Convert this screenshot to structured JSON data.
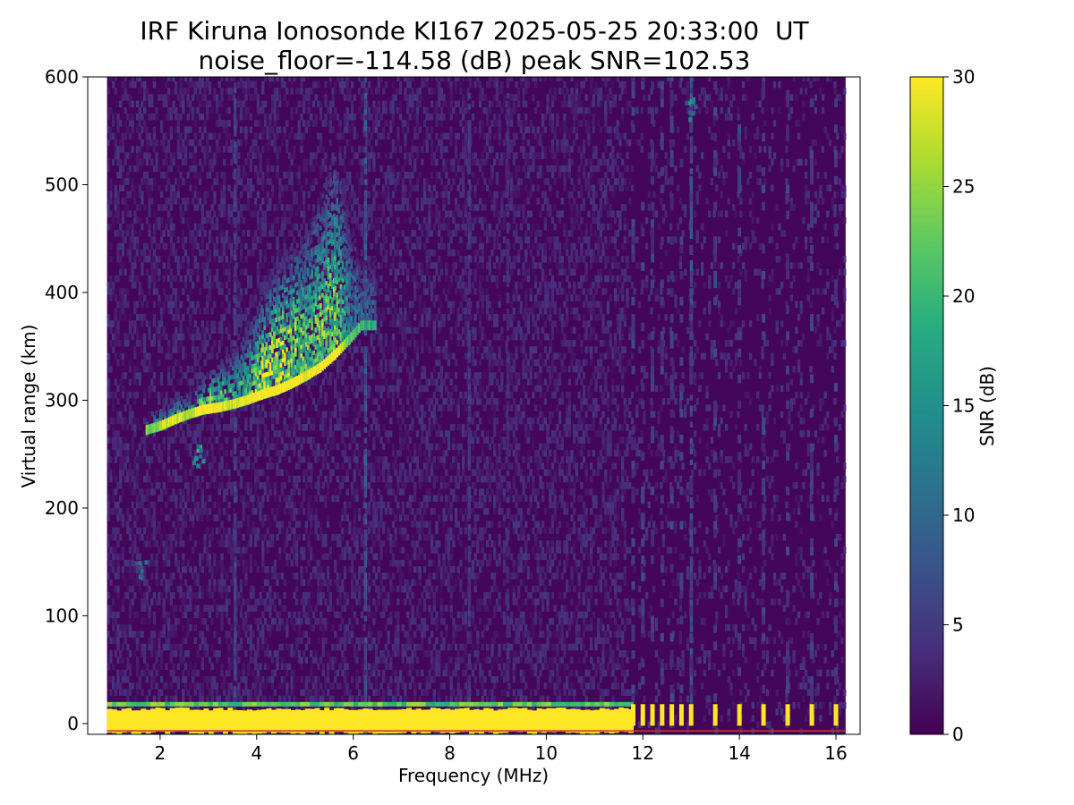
{
  "chart_data": {
    "type": "heatmap",
    "title_line1": "IRF Kiruna Ionosonde KI167 2025-05-25 20:33:00  UT",
    "title_line2": "noise_floor=-114.58 (dB) peak SNR=102.53",
    "xlabel": "Frequency (MHz)",
    "ylabel": "Virtual range (km)",
    "colorbar_label": "SNR (dB)",
    "colormap": "viridis",
    "xlim": [
      0.5,
      16.5
    ],
    "ylim": [
      -10,
      600
    ],
    "data_x_range": [
      0.9,
      16.2
    ],
    "x_ticks": [
      2,
      4,
      6,
      8,
      10,
      12,
      14,
      16
    ],
    "y_ticks": [
      0,
      100,
      200,
      300,
      400,
      500,
      600
    ],
    "colorbar_range": [
      0,
      30
    ],
    "colorbar_ticks": [
      0,
      5,
      10,
      15,
      20,
      25,
      30
    ],
    "noise_floor_db": -114.58,
    "peak_snr": 102.53,
    "sweep_change_mhz": 11.7,
    "ground_clutter": {
      "range_km": [
        -8,
        14
      ],
      "snr": 30
    },
    "f_trace": [
      {
        "f": 1.7,
        "range_bottom": 268,
        "range_top": 285,
        "snr": 14
      },
      {
        "f": 2.0,
        "range_bottom": 272,
        "range_top": 292,
        "snr": 18
      },
      {
        "f": 2.3,
        "range_bottom": 278,
        "range_top": 300,
        "snr": 20
      },
      {
        "f": 2.6,
        "range_bottom": 283,
        "range_top": 305,
        "snr": 17
      },
      {
        "f": 2.9,
        "range_bottom": 287,
        "range_top": 320,
        "snr": 26
      },
      {
        "f": 3.2,
        "range_bottom": 289,
        "range_top": 332,
        "snr": 22
      },
      {
        "f": 3.5,
        "range_bottom": 292,
        "range_top": 345,
        "snr": 18
      },
      {
        "f": 3.8,
        "range_bottom": 296,
        "range_top": 365,
        "snr": 20
      },
      {
        "f": 4.1,
        "range_bottom": 301,
        "range_top": 395,
        "snr": 27
      },
      {
        "f": 4.4,
        "range_bottom": 305,
        "range_top": 420,
        "snr": 28
      },
      {
        "f": 4.7,
        "range_bottom": 311,
        "range_top": 440,
        "snr": 26
      },
      {
        "f": 5.0,
        "range_bottom": 318,
        "range_top": 455,
        "snr": 22
      },
      {
        "f": 5.3,
        "range_bottom": 326,
        "range_top": 490,
        "snr": 23
      },
      {
        "f": 5.6,
        "range_bottom": 338,
        "range_top": 530,
        "snr": 24
      },
      {
        "f": 5.9,
        "range_bottom": 352,
        "range_top": 470,
        "snr": 14
      },
      {
        "f": 6.15,
        "range_bottom": 365,
        "range_top": 430,
        "snr": 10
      }
    ],
    "secondary_echoes": [
      {
        "f": 1.6,
        "range": 145,
        "snr": 10
      },
      {
        "f": 2.8,
        "range": 250,
        "snr": 18
      },
      {
        "f": 13.0,
        "range": 570,
        "snr": 14
      }
    ],
    "vertical_streaks": [
      {
        "f": 3.55,
        "snr": 6
      },
      {
        "f": 6.25,
        "snr": 8
      },
      {
        "f": 8.4,
        "snr": 5
      },
      {
        "f": 9.2,
        "snr": 4
      },
      {
        "f": 13.0,
        "snr": 7
      }
    ],
    "high_freq_pulses": [
      11.8,
      12.0,
      12.2,
      12.4,
      12.6,
      12.8,
      13.0,
      13.5,
      14.0,
      14.5,
      15.0,
      15.5,
      16.0
    ]
  }
}
